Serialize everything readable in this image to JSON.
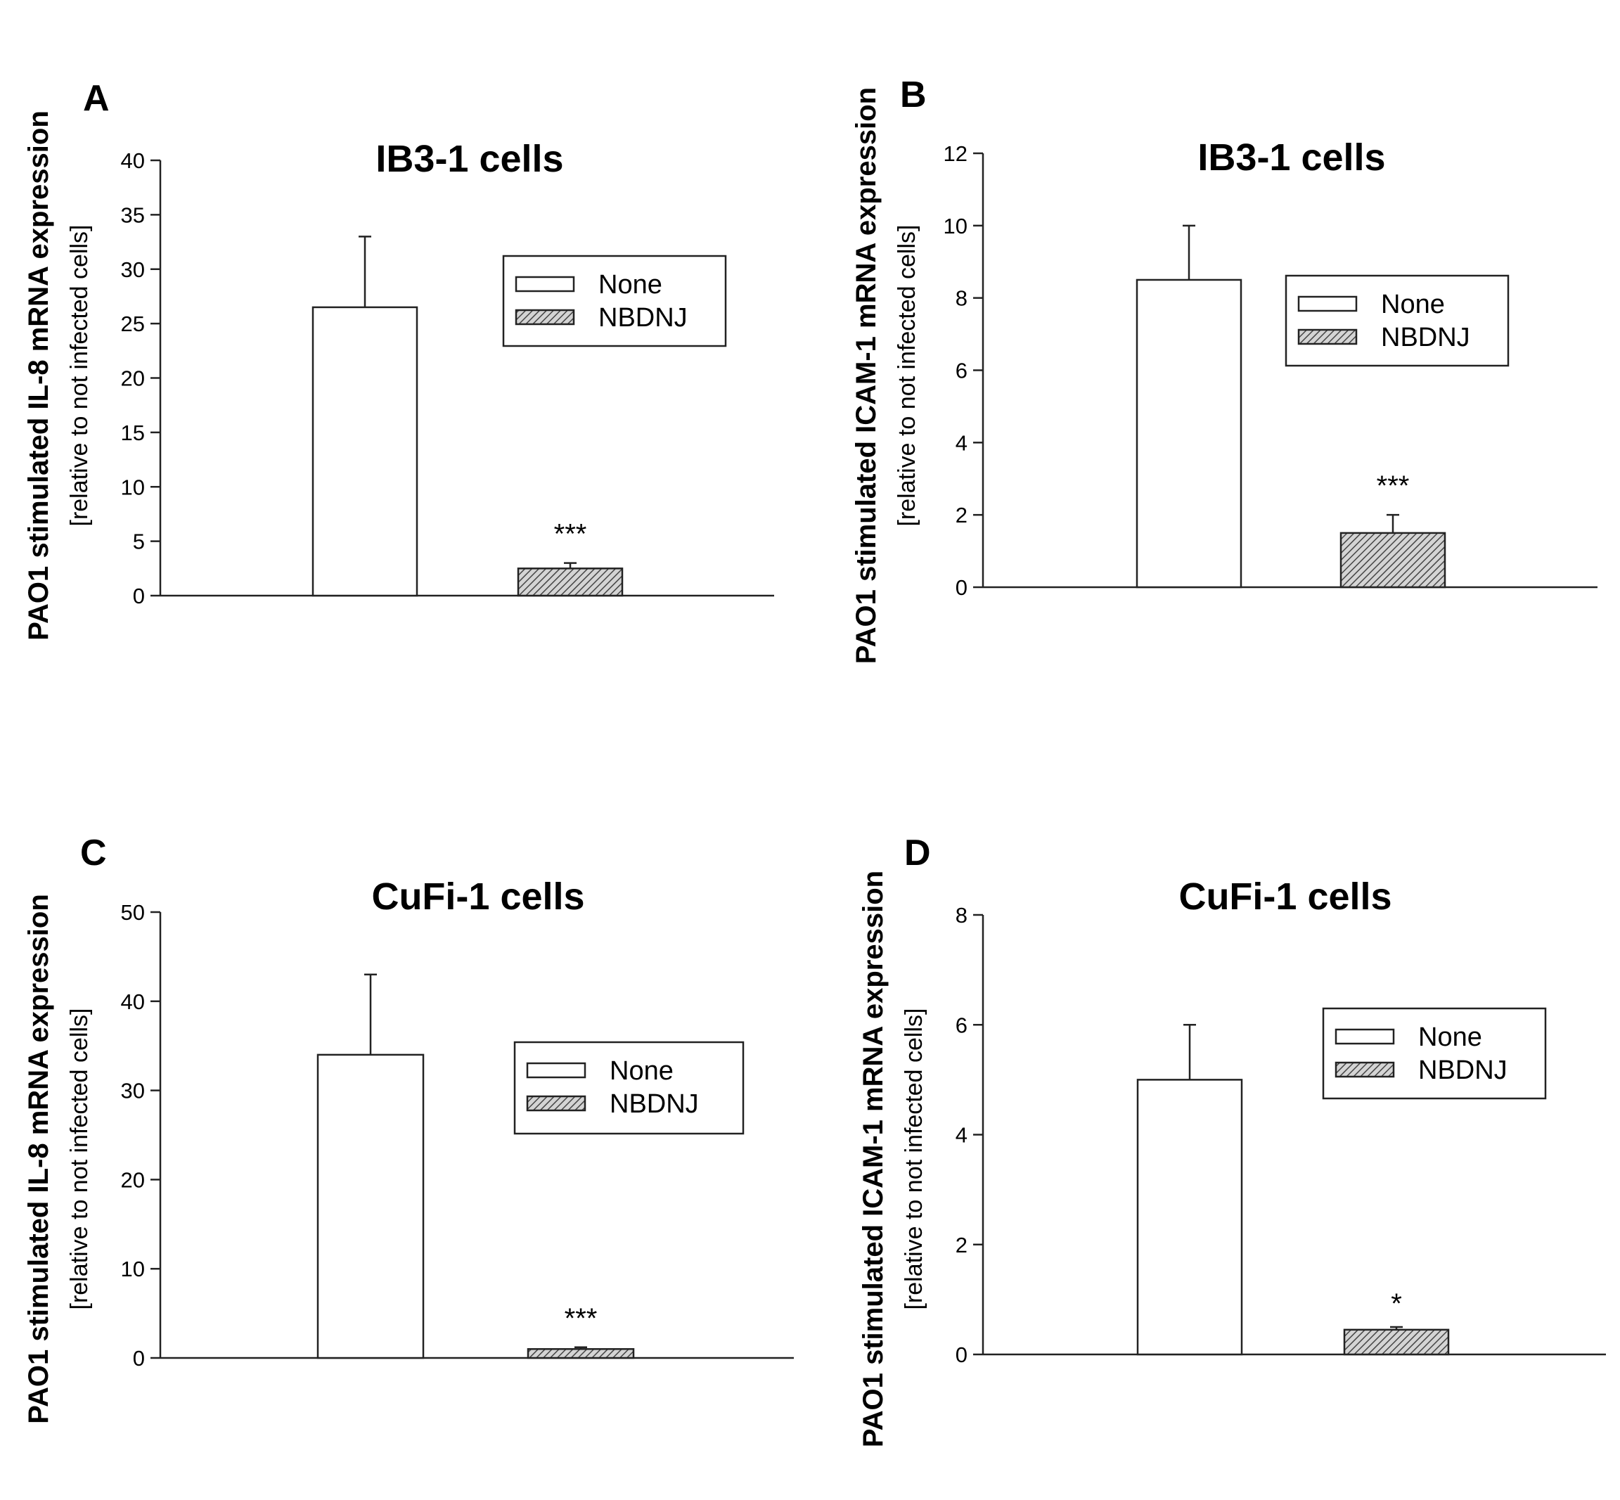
{
  "chart_data": [
    {
      "panel": "A",
      "type": "bar",
      "title": "IB3-1 cells",
      "ylabel": "PAO1 stimulated IL-8 mRNA expression",
      "ylabel_sub": "[relative to not infected cells]",
      "ylim": [
        0,
        40
      ],
      "yticks": [
        0,
        5,
        10,
        15,
        20,
        25,
        30,
        35,
        40
      ],
      "series": [
        {
          "name": "None",
          "value": 26.5,
          "error": 6.5,
          "pattern": "none",
          "significance": ""
        },
        {
          "name": "NBDNJ",
          "value": 2.5,
          "error": 0.5,
          "pattern": "hatched",
          "significance": "***"
        }
      ],
      "legend": [
        "None",
        "NBDNJ"
      ]
    },
    {
      "panel": "B",
      "type": "bar",
      "title": "IB3-1 cells",
      "ylabel": "PAO1 stimulated ICAM-1 mRNA expression",
      "ylabel_sub": "[relative to not infected cells]",
      "ylim": [
        0,
        12
      ],
      "yticks": [
        0,
        2,
        4,
        6,
        8,
        10,
        12
      ],
      "series": [
        {
          "name": "None",
          "value": 8.5,
          "error": 1.5,
          "pattern": "none",
          "significance": ""
        },
        {
          "name": "NBDNJ",
          "value": 1.5,
          "error": 0.5,
          "pattern": "hatched",
          "significance": "***"
        }
      ],
      "legend": [
        "None",
        "NBDNJ"
      ]
    },
    {
      "panel": "C",
      "type": "bar",
      "title": "CuFi-1 cells",
      "ylabel": "PAO1 stimulated IL-8 mRNA expression",
      "ylabel_sub": "[relative to not infected cells]",
      "ylim": [
        0,
        50
      ],
      "yticks": [
        0,
        10,
        20,
        30,
        40,
        50
      ],
      "series": [
        {
          "name": "None",
          "value": 34,
          "error": 9,
          "pattern": "none",
          "significance": ""
        },
        {
          "name": "NBDNJ",
          "value": 1,
          "error": 0.2,
          "pattern": "hatched",
          "significance": "***"
        }
      ],
      "legend": [
        "None",
        "NBDNJ"
      ]
    },
    {
      "panel": "D",
      "type": "bar",
      "title": "CuFi-1 cells",
      "ylabel": "PAO1 stimulated ICAM-1 mRNA expression",
      "ylabel_sub": "[relative to not infected cells]",
      "ylim": [
        0,
        8
      ],
      "yticks": [
        0,
        2,
        4,
        6,
        8
      ],
      "series": [
        {
          "name": "None",
          "value": 5,
          "error": 1,
          "pattern": "none",
          "significance": ""
        },
        {
          "name": "NBDNJ",
          "value": 0.45,
          "error": 0.05,
          "pattern": "hatched",
          "significance": "*"
        }
      ],
      "legend": [
        "None",
        "NBDNJ"
      ]
    }
  ]
}
